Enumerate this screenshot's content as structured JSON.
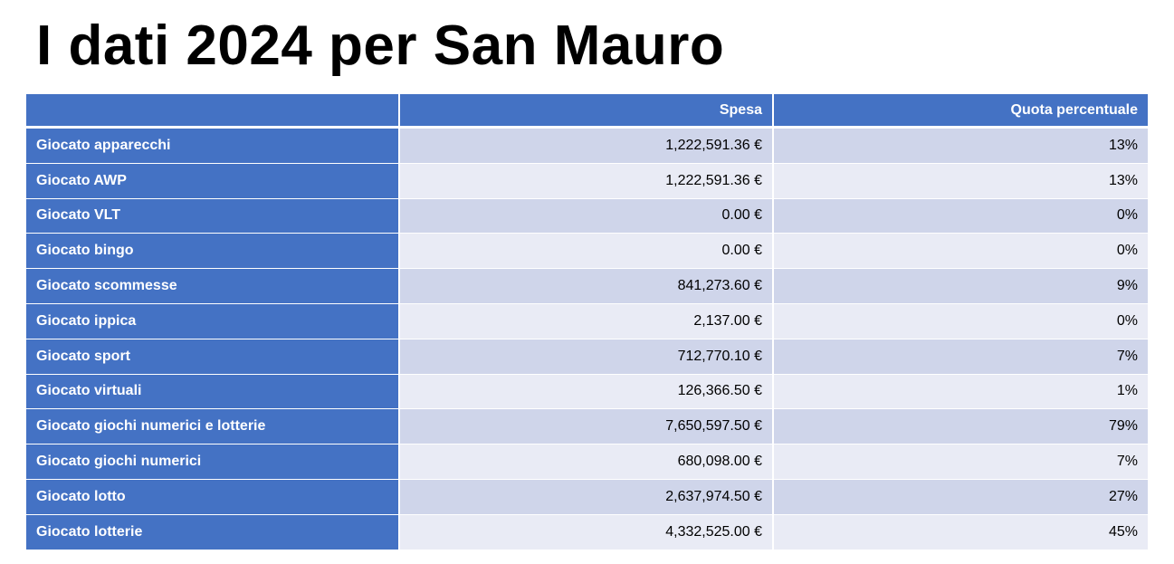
{
  "title": "I dati 2024 per San Mauro",
  "table": {
    "headers": [
      "",
      "Spesa",
      "Quota percentuale"
    ],
    "rows": [
      {
        "label": "Giocato apparecchi",
        "spesa": "1,222,591.36 €",
        "quota": "13%"
      },
      {
        "label": "Giocato AWP",
        "spesa": "1,222,591.36 €",
        "quota": "13%"
      },
      {
        "label": "Giocato VLT",
        "spesa": "0.00 €",
        "quota": "0%"
      },
      {
        "label": "Giocato bingo",
        "spesa": "0.00 €",
        "quota": "0%"
      },
      {
        "label": "Giocato scommesse",
        "spesa": "841,273.60 €",
        "quota": "9%"
      },
      {
        "label": "Giocato ippica",
        "spesa": "2,137.00 €",
        "quota": "0%"
      },
      {
        "label": "Giocato sport",
        "spesa": "712,770.10 €",
        "quota": "7%"
      },
      {
        "label": "Giocato virtuali",
        "spesa": "126,366.50 €",
        "quota": "1%"
      },
      {
        "label": "Giocato giochi numerici e lotterie",
        "spesa": "7,650,597.50 €",
        "quota": "79%"
      },
      {
        "label": "Giocato giochi numerici",
        "spesa": "680,098.00 €",
        "quota": "7%"
      },
      {
        "label": "Giocato lotto",
        "spesa": "2,637,974.50 €",
        "quota": "27%"
      },
      {
        "label": "Giocato lotterie",
        "spesa": "4,332,525.00 €",
        "quota": "45%"
      }
    ]
  },
  "colors": {
    "header_and_label_bg": "#4472c4",
    "band_dark": "#cfd5ea",
    "band_light": "#e9ebf5"
  }
}
